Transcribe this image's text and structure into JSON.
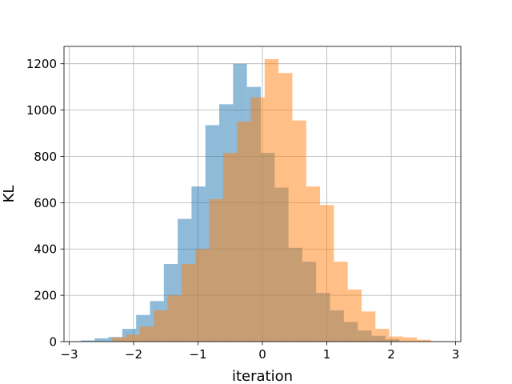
{
  "chart_data": {
    "type": "bar",
    "title": "",
    "xlabel": "iteration",
    "ylabel": "KL",
    "xlim": [
      -3.08,
      3.08
    ],
    "ylim": [
      0,
      1275
    ],
    "xticks": [
      -3,
      -2,
      -1,
      0,
      1,
      2,
      3
    ],
    "xtick_labels": [
      "−3",
      "−2",
      "−1",
      "0",
      "1",
      "2",
      "3"
    ],
    "yticks": [
      0,
      200,
      400,
      600,
      800,
      1000,
      1200
    ],
    "ytick_labels": [
      "0",
      "200",
      "400",
      "600",
      "800",
      "1000",
      "1200"
    ],
    "grid": true,
    "series": [
      {
        "color": "#1f77b4",
        "opacity": 0.5,
        "bin_edges": [
          -2.82,
          -2.605,
          -2.39,
          -2.175,
          -1.96,
          -1.745,
          -1.53,
          -1.315,
          -1.1,
          -0.885,
          -0.67,
          -0.455,
          -0.24,
          -0.025,
          0.19,
          0.405,
          0.62,
          0.835,
          1.05,
          1.265,
          1.48,
          1.695,
          1.91,
          2.125
        ],
        "values": [
          5,
          14,
          20,
          55,
          115,
          175,
          335,
          530,
          670,
          935,
          1025,
          1200,
          1100,
          815,
          665,
          405,
          345,
          210,
          135,
          85,
          48,
          25,
          10
        ]
      },
      {
        "color": "#ff7f0e",
        "opacity": 0.5,
        "bin_edges": [
          -2.33,
          -2.115,
          -1.9,
          -1.685,
          -1.47,
          -1.255,
          -1.04,
          -0.825,
          -0.61,
          -0.395,
          -0.18,
          0.035,
          0.25,
          0.465,
          0.68,
          0.895,
          1.11,
          1.325,
          1.54,
          1.755,
          1.97,
          2.185,
          2.4,
          2.615,
          2.83
        ],
        "values": [
          18,
          30,
          65,
          135,
          200,
          335,
          400,
          615,
          815,
          950,
          1055,
          1220,
          1160,
          955,
          670,
          590,
          345,
          225,
          130,
          55,
          22,
          18,
          8,
          2
        ]
      }
    ]
  }
}
